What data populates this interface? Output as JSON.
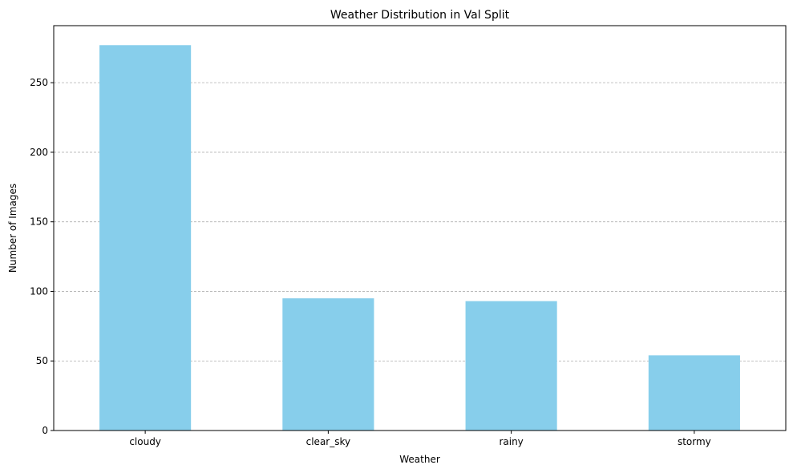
{
  "chart_data": {
    "type": "bar",
    "title": "Weather Distribution in Val Split",
    "xlabel": "Weather",
    "ylabel": "Number of Images",
    "categories": [
      "cloudy",
      "clear_sky",
      "rainy",
      "stormy"
    ],
    "values": [
      277,
      95,
      93,
      54
    ],
    "ylim": [
      0,
      291
    ],
    "yticks": [
      0,
      50,
      100,
      150,
      200,
      250
    ],
    "grid": "y-dashed",
    "bar_color": "#87ceeb",
    "grid_color": "#b0b0b0"
  }
}
